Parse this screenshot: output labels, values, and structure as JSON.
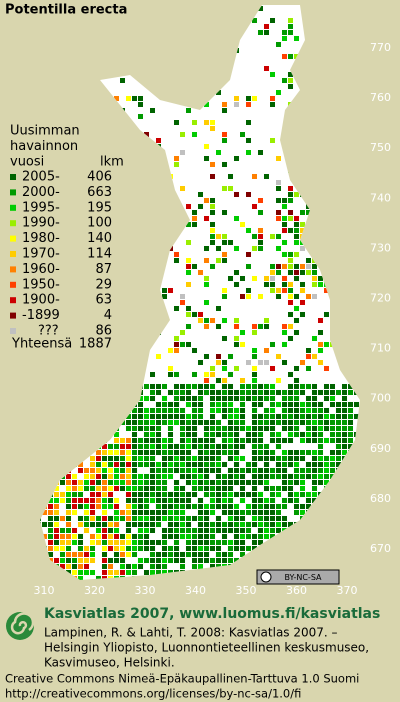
{
  "title": "Potentilla erecta",
  "legend": {
    "heading": [
      "Uusimman",
      "havainnon",
      "vuosi"
    ],
    "count_heading": "lkm",
    "rows": [
      {
        "label": "2005-",
        "count": 406,
        "color": "#006400"
      },
      {
        "label": "2000-",
        "count": 663,
        "color": "#009a00"
      },
      {
        "label": "1995-",
        "count": 195,
        "color": "#00cc00"
      },
      {
        "label": "1990-",
        "count": 100,
        "color": "#99ee00"
      },
      {
        "label": "1980-",
        "count": 140,
        "color": "#ffff00"
      },
      {
        "label": "1970-",
        "count": 114,
        "color": "#ffcc00"
      },
      {
        "label": "1960-",
        "count": 87,
        "color": "#ff8000"
      },
      {
        "label": "1950-",
        "count": 29,
        "color": "#ff4000"
      },
      {
        "label": "1900-",
        "count": 63,
        "color": "#cc0000"
      },
      {
        "label": "-1899",
        "count": 4,
        "color": "#800000"
      },
      {
        "label": "???",
        "count": 86,
        "color": "#c0c0c0"
      }
    ],
    "total_label": "Yhteensä",
    "total": 1887
  },
  "map": {
    "northing_labels": [
      770,
      760,
      750,
      740,
      730,
      720,
      710,
      700,
      690,
      680,
      670
    ],
    "easting_labels": [
      310,
      320,
      330,
      340,
      350,
      360,
      370
    ],
    "license_badge": "BY-NC-SA"
  },
  "footer": {
    "headline": "Kasviatlas 2007, www.luomus.fi/kasviatlas",
    "citation": [
      "Lampinen, R. & Lahti, T. 2008: Kasviatlas 2007. –",
      "Helsingin Yliopisto, Luonnontieteellinen keskusmuseo,",
      "Kasvimuseo, Helsinki."
    ],
    "license": [
      "Creative Commons Nimeä-Epäkaupallinen-Tarttuva 1.0 Suomi",
      "http://creativecommons.org/licenses/by-nc-sa/1.0/fi"
    ]
  }
}
